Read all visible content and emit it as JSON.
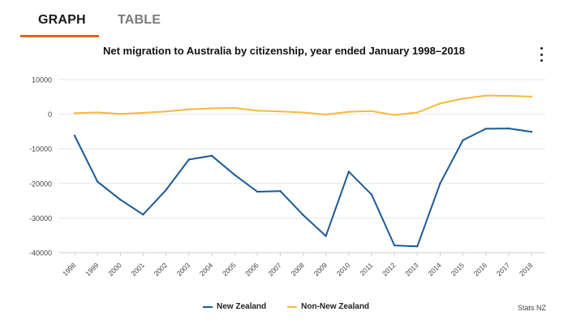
{
  "tabs": {
    "graph": "GRAPH",
    "table": "TABLE"
  },
  "credit": "Stats NZ",
  "colors": {
    "accent": "#e0661e",
    "nz": "#1b5a96",
    "non_nz": "#f5b93f"
  },
  "chart_data": {
    "type": "line",
    "title": "Net migration to Australia by citizenship, year ended January 1998–2018",
    "xlabel": "",
    "ylabel": "",
    "categories": [
      "1998",
      "1999",
      "2000",
      "2001",
      "2002",
      "2003",
      "2004",
      "2005",
      "2006",
      "2007",
      "2008",
      "2009",
      "2010",
      "2011",
      "2012",
      "2013",
      "2014",
      "2015",
      "2016",
      "2017",
      "2018"
    ],
    "yticks": [
      "10000",
      "0",
      "-10000",
      "-20000",
      "-30000",
      "-40000"
    ],
    "ylim": [
      -40000,
      10000
    ],
    "grid": true,
    "legend_position": "bottom",
    "series": [
      {
        "name": "New Zealand",
        "color": "#1b5a96",
        "values": [
          -6200,
          -19500,
          -24700,
          -29000,
          -21900,
          -13100,
          -12000,
          -17500,
          -22400,
          -22200,
          -29100,
          -35200,
          -16600,
          -23200,
          -37900,
          -38200,
          -20000,
          -7500,
          -4200,
          -4100,
          -5100
        ]
      },
      {
        "name": "Non-New Zealand",
        "color": "#f5b93f",
        "values": [
          300,
          500,
          100,
          400,
          800,
          1400,
          1700,
          1800,
          1000,
          800,
          500,
          -100,
          700,
          900,
          -200,
          500,
          3100,
          4500,
          5400,
          5300,
          5100
        ]
      }
    ]
  }
}
